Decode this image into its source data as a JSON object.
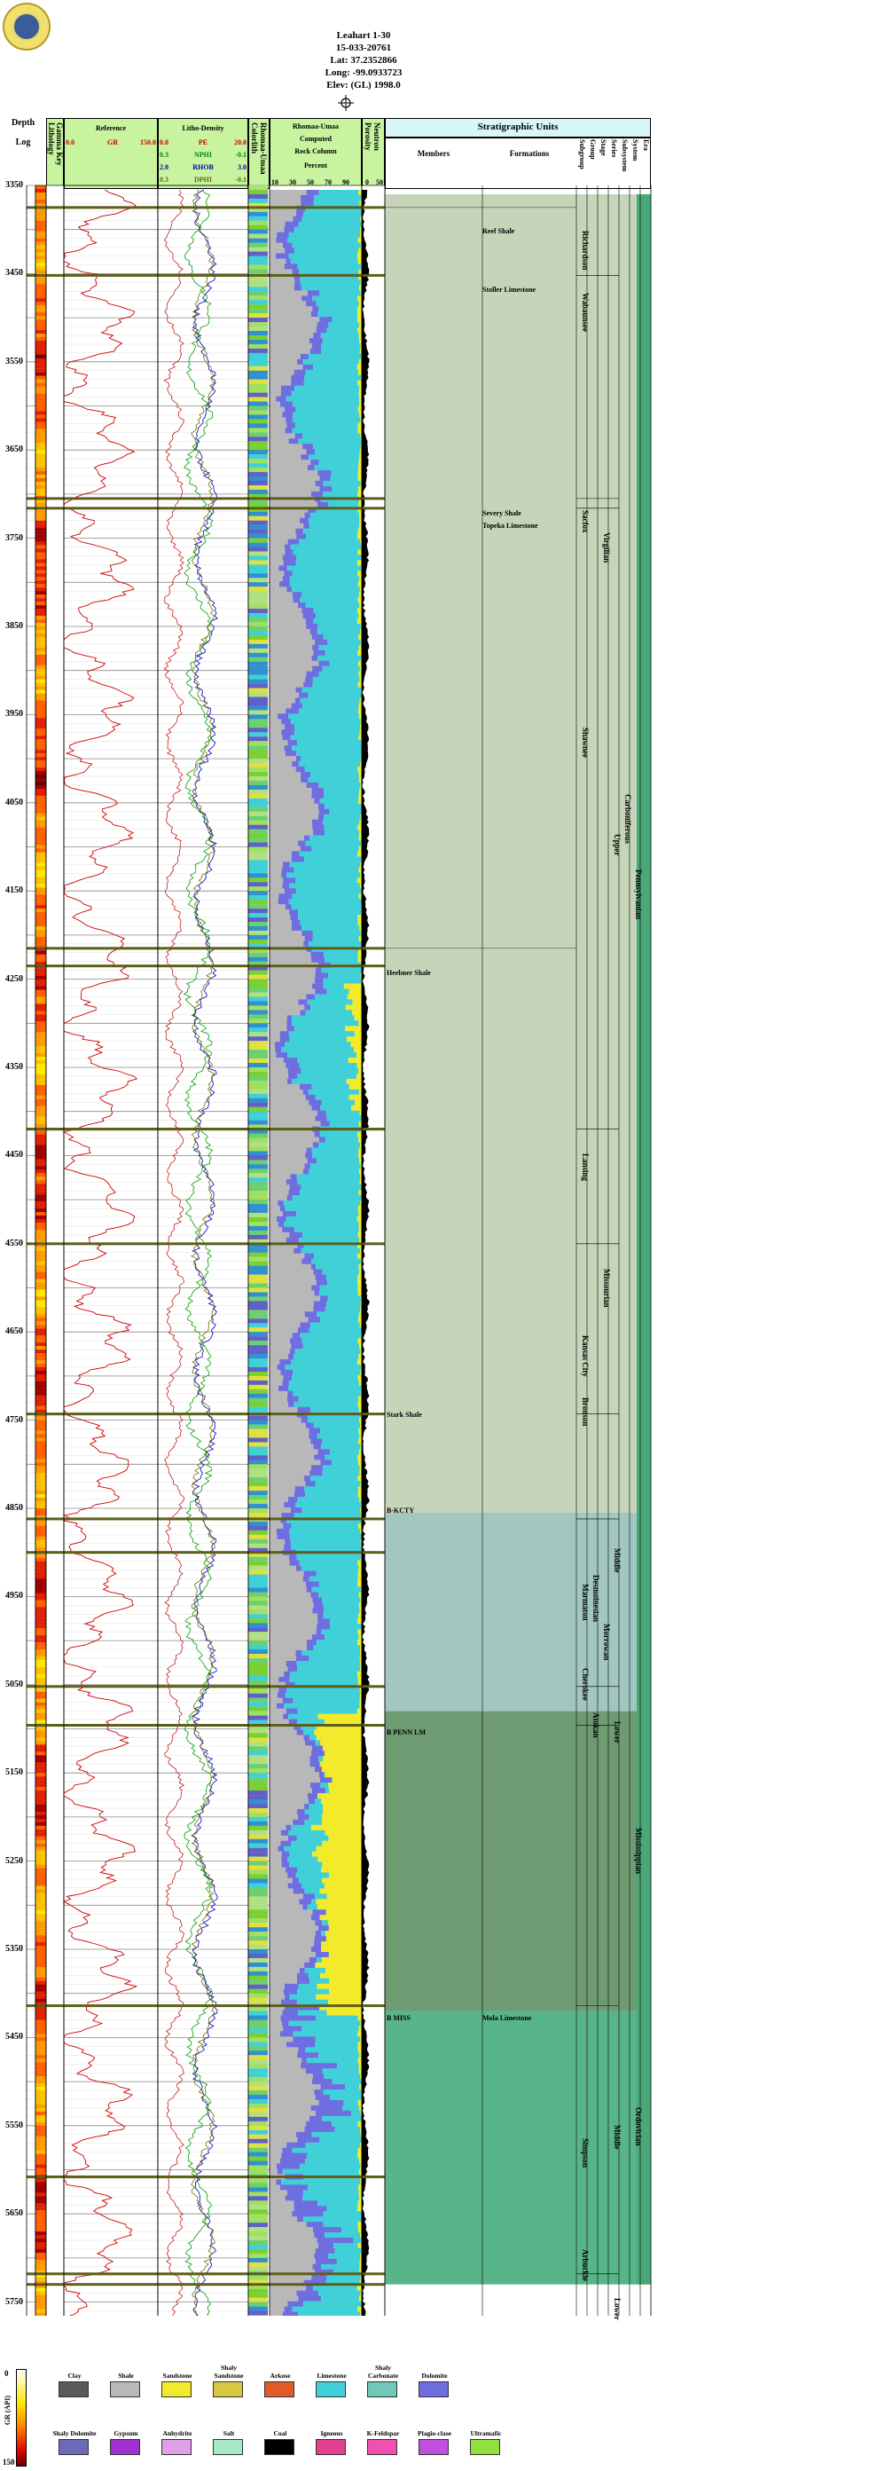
{
  "well": {
    "name": "Leahart 1-30",
    "api": "15-033-20761",
    "lat": "Lat: 37.2352866",
    "long": "Long: -99.0933723",
    "elev": "Elev: (GL) 1998.0"
  },
  "headers": {
    "depth": "Depth",
    "log": "Log",
    "lithology_key": "Lithology",
    "gamma_key": "Gamma Key",
    "reference": "Reference",
    "gr_left": "0.0",
    "gr_name": "GR",
    "gr_right": "150.0",
    "lithodensity": "Litho-Density",
    "pe_left": "0.0",
    "pe_name": "PE",
    "pe_right": "20.0",
    "nphi_left": "0.3",
    "nphi_name": "NPHI",
    "nphi_right": "-0.1",
    "rhob_left": "2.0",
    "rhob_name": "RHOB",
    "rhob_right": "3.0",
    "dphi_left": "0.3",
    "dphi_name": "DPHI",
    "dphi_right": "-0.1",
    "colorlith": "Colorlith",
    "rhomaa_umaa": "Rhomaa-Umaa",
    "rhomaa_umaa2": "Rhomaa-Umaa",
    "computed": "Computed",
    "rock_column": "Rock Column",
    "percent": "Percent",
    "pct_ticks": [
      "10",
      "30",
      "50",
      "70",
      "90"
    ],
    "porosity": "Porosity",
    "neutron": "Neutron",
    "por_ticks": [
      "0",
      "50"
    ],
    "strat_units": "Stratigraphic Units",
    "members": "Members",
    "formations": "Formations",
    "subgroup": "Subgroup",
    "group": "Group",
    "stage": "Stage",
    "series": "Series",
    "subsystem": "Subsystem",
    "system": "System",
    "era": "Era"
  },
  "depths": [
    "3350",
    "3450",
    "3550",
    "3650",
    "3750",
    "3850",
    "3950",
    "4050",
    "4150",
    "4250",
    "4350",
    "4450",
    "4550",
    "4650",
    "4750",
    "4850",
    "4950",
    "5050",
    "5150",
    "5250",
    "5350",
    "5450",
    "5550",
    "5650",
    "5750"
  ],
  "members": [
    {
      "label": "Reef Shale"
    },
    {
      "label": "Stoller Limestone"
    },
    {
      "label": "Severy Shale"
    },
    {
      "label": "Topeka Limestone"
    },
    {
      "label": "Heebner Shale"
    },
    {
      "label": "Stark Shale"
    },
    {
      "label": "B-KCTY"
    },
    {
      "label": "B PENN LM"
    },
    {
      "label": "B MISS"
    },
    {
      "label": "Mola Limestone"
    }
  ],
  "formations": [
    {
      "label": "Richardson"
    },
    {
      "label": "Wabaunsee"
    },
    {
      "label": "Sacfox"
    },
    {
      "label": "Shawnee"
    },
    {
      "label": "Lansing"
    },
    {
      "label": "Kansas City"
    },
    {
      "label": "Bronson"
    },
    {
      "label": "Marmaton"
    },
    {
      "label": "Cherokee"
    },
    {
      "label": "Simpson"
    },
    {
      "label": "Arbuckle"
    }
  ],
  "stages": [
    {
      "label": "Virgilian"
    },
    {
      "label": "Missourian"
    },
    {
      "label": "Desmoinesian"
    },
    {
      "label": "Atokan"
    },
    {
      "label": "Morrowan"
    }
  ],
  "series": [
    {
      "label": "Upper"
    },
    {
      "label": "Middle"
    },
    {
      "label": "Lower"
    },
    {
      "label": "Middle"
    },
    {
      "label": "Lower"
    }
  ],
  "systems": [
    {
      "label": "Pennsylvanian"
    },
    {
      "label": "Mississippian"
    },
    {
      "label": "Ordovician"
    }
  ],
  "subsystem": {
    "label": "Carboniferous"
  },
  "legend": {
    "gamma_label": "GR (API)",
    "gamma_top": "0",
    "gamma_bottom": "150",
    "row1": [
      {
        "label": "Clay",
        "color": "#5a5a5a"
      },
      {
        "label": "Shale",
        "color": "#b8b8b8"
      },
      {
        "label": "Sandstone",
        "color": "#f2ea2a"
      },
      {
        "label": "Shaly Sandstone",
        "color": "#d8c840"
      },
      {
        "label": "Arkose",
        "color": "#e05a2a"
      },
      {
        "label": "Limestone",
        "color": "#40d0d8"
      },
      {
        "label": "Shaly Carbonate",
        "color": "#70c8b8"
      },
      {
        "label": "Dolomite",
        "color": "#6e6ee0"
      }
    ],
    "row2": [
      {
        "label": "Shaly Dolomite",
        "color": "#6a6ab8"
      },
      {
        "label": "Gypsum",
        "color": "#a030d0"
      },
      {
        "label": "Anhydrite",
        "color": "#e0a0e8"
      },
      {
        "label": "Salt",
        "color": "#a8e8c8"
      },
      {
        "label": "Coal",
        "color": "#000000"
      },
      {
        "label": "Igneous",
        "color": "#e04090"
      },
      {
        "label": "K-Feldspar",
        "color": "#f050b0"
      },
      {
        "label": "Plagio-clase",
        "color": "#c050e0"
      },
      {
        "label": "Ultramafic",
        "color": "#90e040"
      }
    ]
  }
}
